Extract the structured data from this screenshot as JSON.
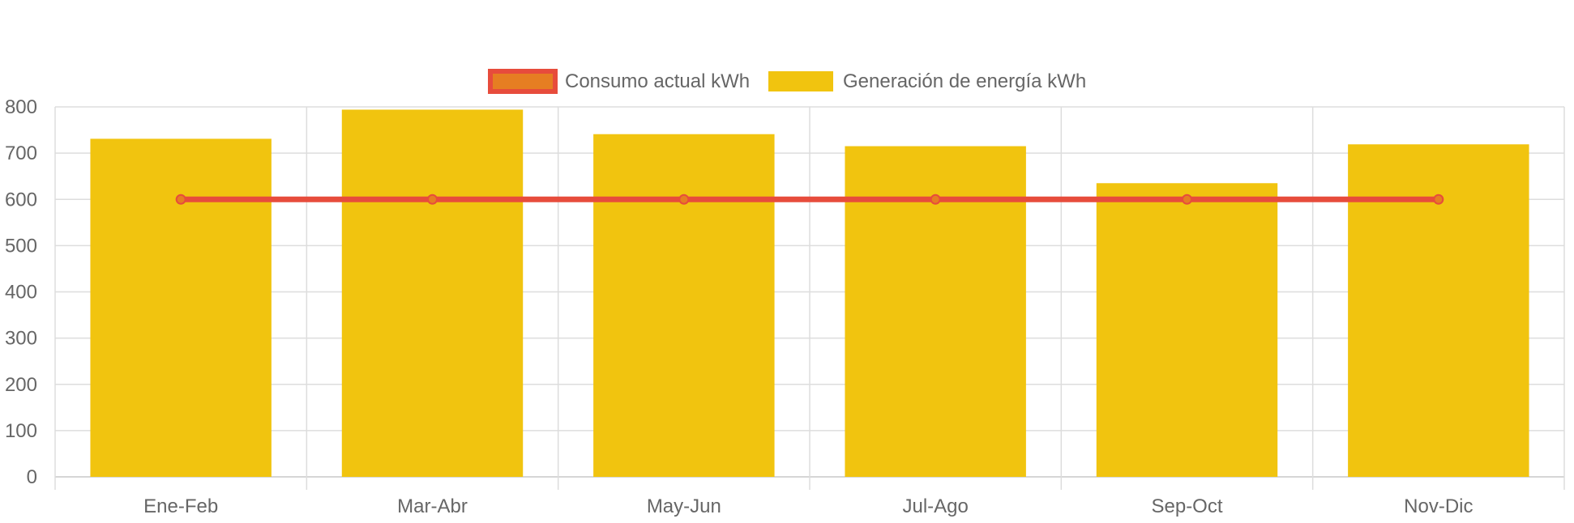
{
  "colors": {
    "bar_fill": "#F1C40F",
    "line_stroke": "#E74C3C",
    "point_fill": "#E67E22",
    "grid": "#DDDDDD",
    "text": "#666666"
  },
  "chart_data": {
    "type": "bar",
    "title": "",
    "xlabel": "",
    "ylabel": "",
    "ylim": [
      0,
      800
    ],
    "yticks": [
      0,
      100,
      200,
      300,
      400,
      500,
      600,
      700,
      800
    ],
    "grid": true,
    "legend_position": "top",
    "categories": [
      "Ene-Feb",
      "Mar-Abr",
      "May-Jun",
      "Jul-Ago",
      "Sep-Oct",
      "Nov-Dic"
    ],
    "series": [
      {
        "name": "Consumo actual kWh",
        "type": "line",
        "values": [
          600,
          600,
          600,
          600,
          600,
          600
        ]
      },
      {
        "name": "Generación de energía kWh",
        "type": "bar",
        "values": [
          731,
          794,
          741,
          715,
          635,
          719
        ]
      }
    ]
  }
}
